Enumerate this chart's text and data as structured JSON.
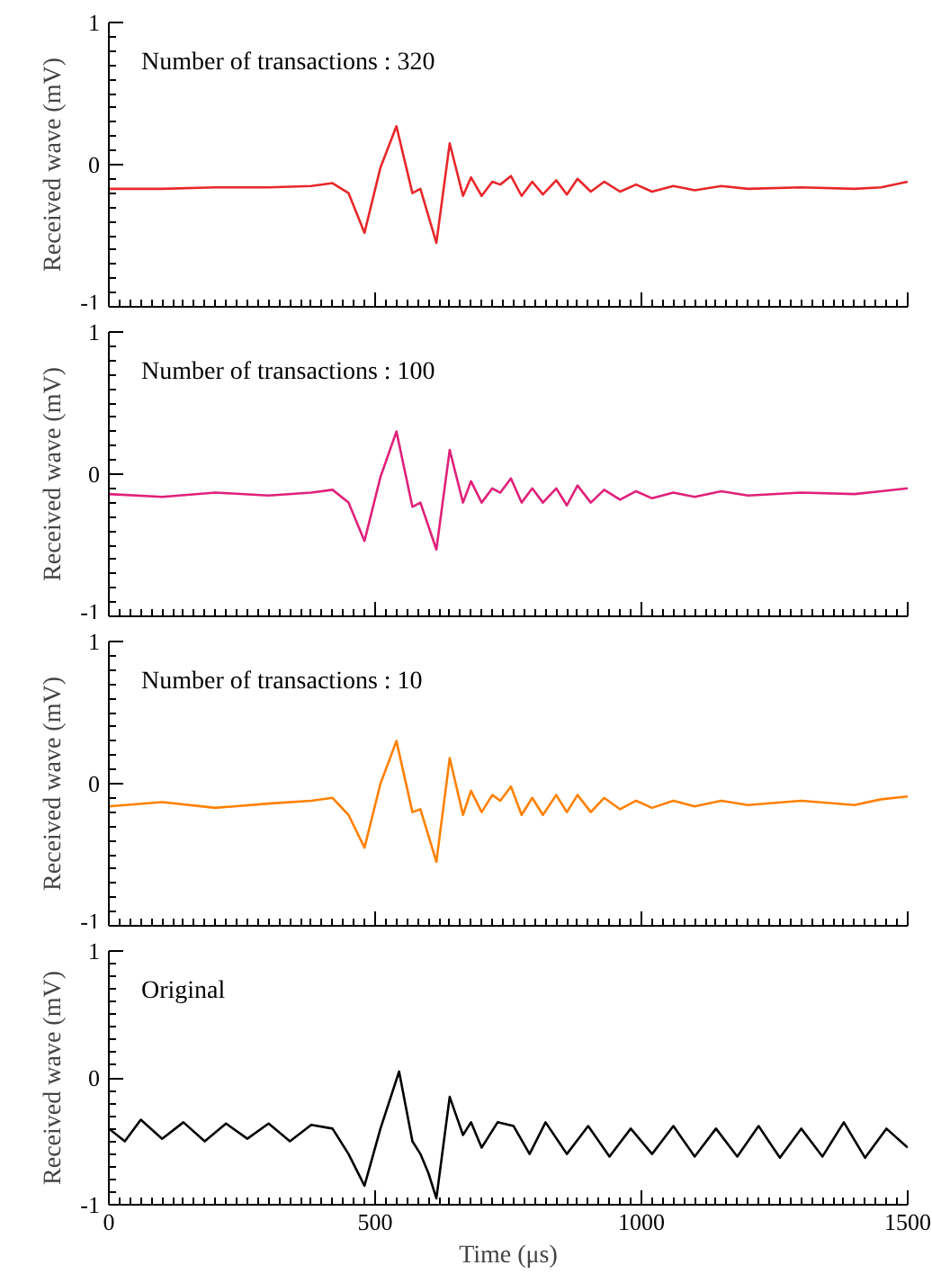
{
  "chart_data": [
    {
      "type": "line",
      "annotations": [
        "Number of transactions : 320"
      ],
      "ylabel": "Received wave (mV)",
      "xlim": [
        0,
        1500
      ],
      "xticks": [
        0,
        500,
        1000,
        1500
      ],
      "ylim": [
        -1,
        1
      ],
      "yticks": [
        -1,
        0,
        1
      ],
      "tick_labels": "y",
      "grid": false,
      "x": [
        0,
        100,
        200,
        300,
        380,
        420,
        450,
        480,
        510,
        540,
        570,
        585,
        615,
        640,
        665,
        680,
        700,
        720,
        735,
        755,
        775,
        795,
        815,
        840,
        860,
        880,
        905,
        930,
        960,
        990,
        1020,
        1060,
        1100,
        1150,
        1200,
        1300,
        1400,
        1450,
        1500
      ],
      "series": [
        {
          "color": "#e8272a",
          "values": [
            -0.17,
            -0.17,
            -0.16,
            -0.16,
            -0.15,
            -0.13,
            -0.2,
            -0.48,
            -0.02,
            0.27,
            -0.2,
            -0.17,
            -0.55,
            0.15,
            -0.22,
            -0.09,
            -0.22,
            -0.12,
            -0.14,
            -0.08,
            -0.22,
            -0.12,
            -0.21,
            -0.11,
            -0.21,
            -0.1,
            -0.19,
            -0.12,
            -0.19,
            -0.14,
            -0.19,
            -0.15,
            -0.18,
            -0.15,
            -0.17,
            -0.16,
            -0.17,
            -0.16,
            -0.12
          ]
        }
      ]
    },
    {
      "type": "line",
      "annotations": [
        "Number of transactions : 100"
      ],
      "ylabel": "Received wave (mV)",
      "xlim": [
        0,
        1500
      ],
      "xticks": [
        0,
        500,
        1000,
        1500
      ],
      "ylim": [
        -1,
        1
      ],
      "yticks": [
        -1,
        0,
        1
      ],
      "tick_labels": "y",
      "grid": false,
      "x": [
        0,
        100,
        200,
        300,
        380,
        420,
        450,
        480,
        510,
        540,
        570,
        585,
        615,
        640,
        665,
        680,
        700,
        720,
        735,
        755,
        775,
        795,
        815,
        840,
        860,
        880,
        905,
        930,
        960,
        990,
        1020,
        1060,
        1100,
        1150,
        1200,
        1300,
        1400,
        1450,
        1500
      ],
      "series": [
        {
          "color": "#e0207a",
          "values": [
            -0.14,
            -0.16,
            -0.13,
            -0.15,
            -0.13,
            -0.11,
            -0.2,
            -0.47,
            -0.02,
            0.3,
            -0.23,
            -0.2,
            -0.53,
            0.17,
            -0.2,
            -0.05,
            -0.2,
            -0.1,
            -0.13,
            -0.03,
            -0.2,
            -0.1,
            -0.2,
            -0.1,
            -0.22,
            -0.08,
            -0.2,
            -0.11,
            -0.18,
            -0.12,
            -0.17,
            -0.13,
            -0.16,
            -0.12,
            -0.15,
            -0.13,
            -0.14,
            -0.12,
            -0.1
          ]
        }
      ]
    },
    {
      "type": "line",
      "annotations": [
        "Number of transactions : 10"
      ],
      "ylabel": "Received wave (mV)",
      "xlim": [
        0,
        1500
      ],
      "xticks": [
        0,
        500,
        1000,
        1500
      ],
      "ylim": [
        -1,
        1
      ],
      "yticks": [
        -1,
        0,
        1
      ],
      "tick_labels": "y",
      "grid": false,
      "x": [
        0,
        100,
        200,
        300,
        380,
        420,
        450,
        480,
        510,
        540,
        570,
        585,
        615,
        640,
        665,
        680,
        700,
        720,
        735,
        755,
        775,
        795,
        815,
        840,
        860,
        880,
        905,
        930,
        960,
        990,
        1020,
        1060,
        1100,
        1150,
        1200,
        1300,
        1400,
        1450,
        1500
      ],
      "series": [
        {
          "color": "#ff8000",
          "values": [
            -0.16,
            -0.13,
            -0.17,
            -0.14,
            -0.12,
            -0.1,
            -0.22,
            -0.45,
            0.0,
            0.3,
            -0.2,
            -0.18,
            -0.55,
            0.18,
            -0.22,
            -0.05,
            -0.2,
            -0.08,
            -0.12,
            -0.02,
            -0.22,
            -0.1,
            -0.22,
            -0.08,
            -0.2,
            -0.08,
            -0.2,
            -0.1,
            -0.18,
            -0.12,
            -0.17,
            -0.12,
            -0.16,
            -0.12,
            -0.15,
            -0.12,
            -0.15,
            -0.11,
            -0.09
          ]
        }
      ]
    },
    {
      "type": "line",
      "annotations": [
        "Original"
      ],
      "xlabel": "Time (μs)",
      "ylabel": "Received wave (mV)",
      "xlim": [
        0,
        1500
      ],
      "xticks": [
        0,
        500,
        1000,
        1500
      ],
      "ylim": [
        -1,
        1
      ],
      "yticks": [
        -1,
        0,
        1
      ],
      "grid": false,
      "x": [
        0,
        30,
        60,
        100,
        140,
        180,
        220,
        260,
        300,
        340,
        380,
        420,
        450,
        480,
        510,
        545,
        570,
        585,
        600,
        615,
        640,
        665,
        680,
        700,
        730,
        760,
        790,
        820,
        860,
        900,
        940,
        980,
        1020,
        1060,
        1100,
        1140,
        1180,
        1220,
        1260,
        1300,
        1340,
        1380,
        1420,
        1460,
        1500
      ],
      "series": [
        {
          "color": "#000000",
          "values": [
            -0.4,
            -0.5,
            -0.33,
            -0.48,
            -0.35,
            -0.5,
            -0.36,
            -0.48,
            -0.36,
            -0.5,
            -0.37,
            -0.4,
            -0.6,
            -0.85,
            -0.4,
            0.05,
            -0.5,
            -0.6,
            -0.75,
            -0.95,
            -0.15,
            -0.45,
            -0.35,
            -0.55,
            -0.35,
            -0.38,
            -0.6,
            -0.35,
            -0.6,
            -0.38,
            -0.62,
            -0.4,
            -0.6,
            -0.38,
            -0.62,
            -0.4,
            -0.62,
            -0.38,
            -0.63,
            -0.4,
            -0.62,
            -0.35,
            -0.63,
            -0.4,
            -0.55
          ]
        }
      ]
    }
  ]
}
